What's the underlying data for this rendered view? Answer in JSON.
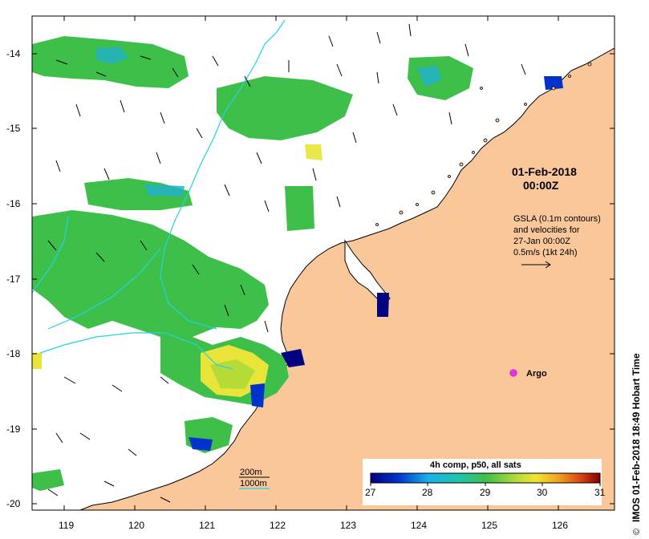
{
  "map": {
    "date_line1": "01-Feb-2018",
    "date_line2": "00:00Z",
    "info_lines": [
      "GSLA (0.1m contours)",
      "and velocities for",
      "27-Jan 00:00Z",
      "0.5m/s (1kt 24h)"
    ],
    "argo_label": "Argo",
    "contour_200": "200m",
    "contour_1000": "1000m",
    "credit": "IMOS 01-Feb-2018 18:49 Hobart Time",
    "copyright_symbol": "©",
    "colorbar": {
      "title": "4h comp, p50, all sats",
      "ticks": [
        "27",
        "28",
        "29",
        "30",
        "31"
      ]
    },
    "axes": {
      "lat_ticks": [
        "-14",
        "-15",
        "-16",
        "-17",
        "-18",
        "-19",
        "-20"
      ],
      "lon_ticks": [
        "119",
        "120",
        "121",
        "122",
        "123",
        "124",
        "125",
        "126"
      ]
    },
    "colors": {
      "land": "#f9c79a",
      "sst_green": "#3dbf4a",
      "sst_cyan": "#22b2c9",
      "sst_yellow": "#e8e43a",
      "contour_cyan": "#22d3e8",
      "argo": "#e01ee0"
    }
  }
}
